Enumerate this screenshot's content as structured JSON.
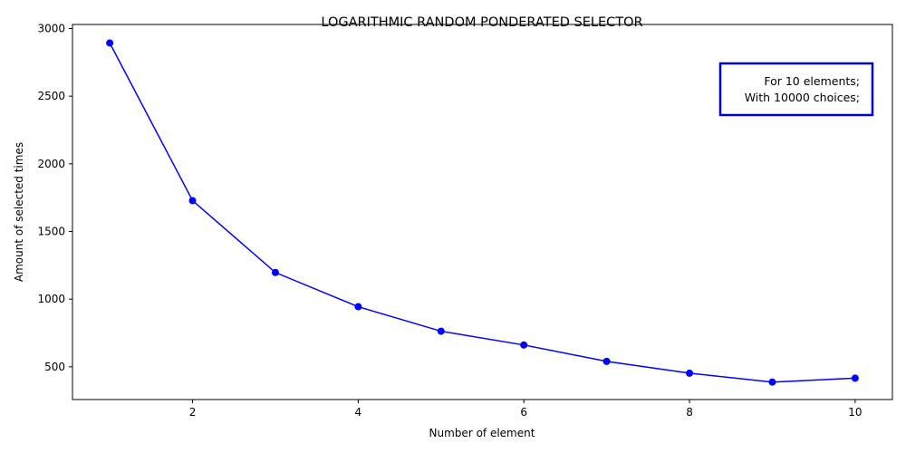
{
  "chart_data": {
    "type": "line",
    "title": "LOGARITHMIC RANDOM PONDERATED SELECTOR",
    "xlabel": "Number of element",
    "ylabel": "Amount of selected times",
    "xlim": [
      0.55,
      10.45
    ],
    "ylim": [
      258,
      3030
    ],
    "x_ticks": [
      2,
      4,
      6,
      8,
      10
    ],
    "y_ticks": [
      500,
      1000,
      1500,
      2000,
      2500,
      3000
    ],
    "grid": false,
    "series": [
      {
        "color": "#0000ff",
        "marker": "circle",
        "x": [
          1,
          2,
          3,
          4,
          5,
          6,
          7,
          8,
          9,
          10
        ],
        "y": [
          2893,
          1728,
          1197,
          944,
          763,
          661,
          540,
          453,
          387,
          416
        ]
      }
    ],
    "annotation": {
      "lines": [
        "For 10 elements;",
        "With 10000 choices;"
      ],
      "border_color": "#0000cc",
      "position": "top-right"
    }
  }
}
